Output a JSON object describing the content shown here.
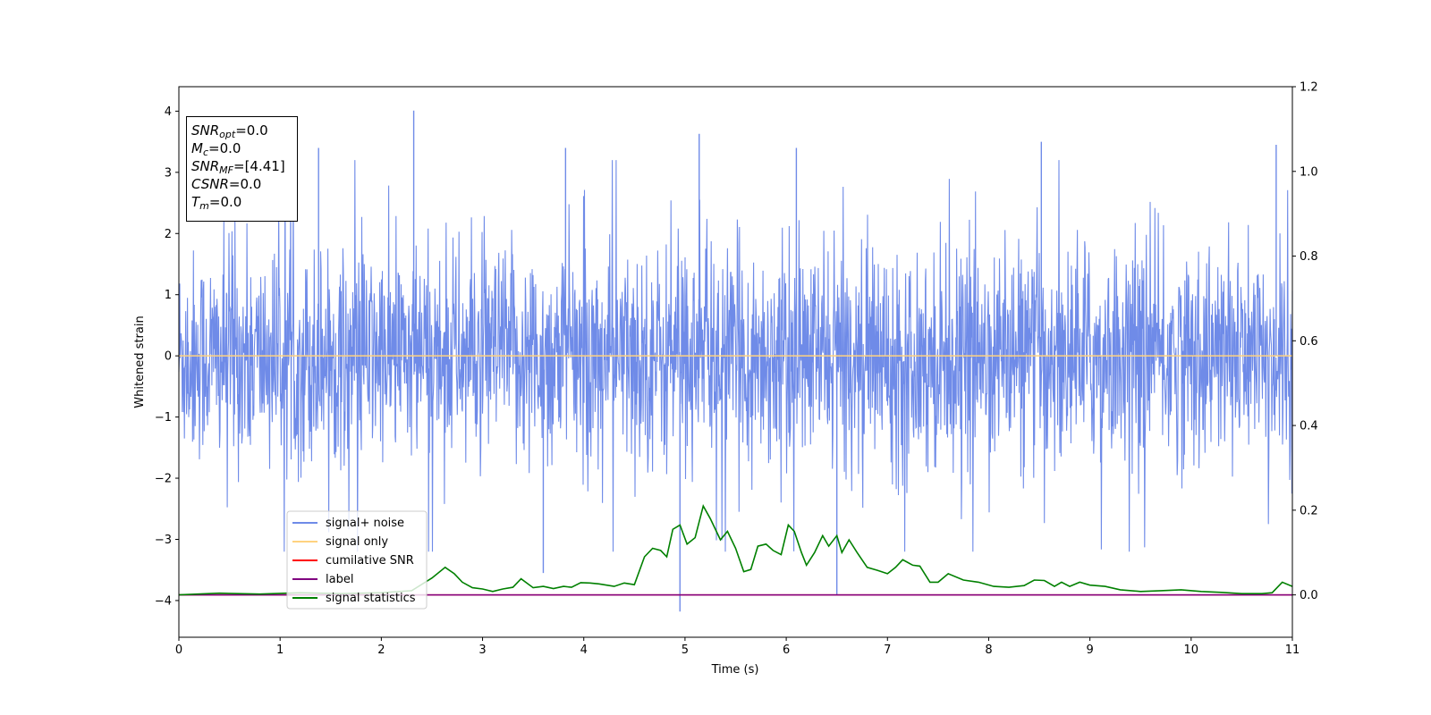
{
  "chart_data": {
    "type": "line",
    "xlabel": "Time (s)",
    "ylabel": "Whitened strain",
    "xlim": [
      0,
      11
    ],
    "ylim": [
      -4.6,
      4.4
    ],
    "y2lim": [
      -0.1,
      1.2
    ],
    "x_ticks": [
      0,
      1,
      2,
      3,
      4,
      5,
      6,
      7,
      8,
      9,
      10,
      11
    ],
    "y_ticks": [
      -4,
      -3,
      -2,
      -1,
      0,
      1,
      2,
      3,
      4
    ],
    "y2_ticks": [
      "0.0",
      "0.2",
      "0.4",
      "0.6",
      "0.8",
      "1.0",
      "1.2"
    ],
    "grid": false,
    "legend_position": "lower-left",
    "series": [
      {
        "name": "signal+ noise",
        "color": "#6f8be8",
        "axis": "left",
        "description_noise_std": 0.85,
        "peaks": [
          [
            2.32,
            4.01
          ],
          [
            5.14,
            3.63
          ],
          [
            1.38,
            3.4
          ],
          [
            3.82,
            3.4
          ],
          [
            6.1,
            3.4
          ],
          [
            8.52,
            3.5
          ],
          [
            10.84,
            3.45
          ],
          [
            4.95,
            -4.18
          ],
          [
            6.5,
            -3.9
          ],
          [
            3.6,
            -3.55
          ]
        ]
      },
      {
        "name": "signal only",
        "color": "#ffd27f",
        "axis": "left",
        "constant": 0.0
      },
      {
        "name": "cumilative SNR",
        "color": "#ff0000",
        "axis": "right",
        "constant": 0.0
      },
      {
        "name": "label",
        "color": "#800080",
        "axis": "right",
        "constant": 0.0
      },
      {
        "name": "signal statistics",
        "color": "#008000",
        "axis": "right",
        "x": [
          0,
          0.4,
          0.8,
          1.2,
          1.6,
          2.0,
          2.3,
          2.5,
          2.63,
          2.72,
          2.8,
          2.9,
          3.0,
          3.1,
          3.2,
          3.3,
          3.38,
          3.5,
          3.6,
          3.7,
          3.8,
          3.88,
          3.97,
          4.06,
          4.15,
          4.3,
          4.4,
          4.5,
          4.6,
          4.68,
          4.76,
          4.82,
          4.88,
          4.95,
          5.02,
          5.1,
          5.18,
          5.25,
          5.35,
          5.42,
          5.5,
          5.58,
          5.65,
          5.72,
          5.8,
          5.87,
          5.95,
          6.02,
          6.08,
          6.15,
          6.2,
          6.28,
          6.36,
          6.42,
          6.5,
          6.55,
          6.62,
          6.7,
          6.8,
          6.9,
          7.0,
          7.08,
          7.15,
          7.25,
          7.32,
          7.42,
          7.5,
          7.6,
          7.75,
          7.9,
          8.05,
          8.2,
          8.35,
          8.45,
          8.55,
          8.65,
          8.72,
          8.8,
          8.9,
          9.0,
          9.15,
          9.3,
          9.5,
          9.7,
          9.9,
          10.1,
          10.3,
          10.5,
          10.7,
          10.8,
          10.9,
          11.0
        ],
        "y": [
          0.0,
          0.004,
          0.002,
          0.005,
          0.003,
          0.005,
          0.01,
          0.04,
          0.065,
          0.05,
          0.03,
          0.017,
          0.014,
          0.008,
          0.014,
          0.018,
          0.038,
          0.017,
          0.02,
          0.015,
          0.02,
          0.018,
          0.029,
          0.028,
          0.026,
          0.02,
          0.028,
          0.024,
          0.09,
          0.11,
          0.105,
          0.09,
          0.155,
          0.165,
          0.12,
          0.135,
          0.21,
          0.18,
          0.13,
          0.15,
          0.11,
          0.055,
          0.06,
          0.115,
          0.12,
          0.105,
          0.095,
          0.165,
          0.15,
          0.1,
          0.07,
          0.1,
          0.14,
          0.115,
          0.14,
          0.1,
          0.13,
          0.1,
          0.065,
          0.058,
          0.05,
          0.065,
          0.083,
          0.07,
          0.068,
          0.03,
          0.03,
          0.05,
          0.035,
          0.03,
          0.02,
          0.018,
          0.022,
          0.035,
          0.034,
          0.02,
          0.03,
          0.02,
          0.03,
          0.023,
          0.02,
          0.012,
          0.008,
          0.01,
          0.012,
          0.008,
          0.006,
          0.003,
          0.003,
          0.005,
          0.03,
          0.02
        ]
      }
    ],
    "annotation": {
      "lines": [
        {
          "main": "SNR",
          "sub": "opt",
          "rest": "=0.0"
        },
        {
          "main": "M",
          "sub": "c",
          "rest": "=0.0"
        },
        {
          "main": "SNR",
          "sub": "MF",
          "rest": "=[4.41]"
        },
        {
          "main": "CSNR",
          "sub": "",
          "rest": "=0.0"
        },
        {
          "main": "T",
          "sub": "m",
          "rest": "=0.0"
        }
      ]
    }
  }
}
